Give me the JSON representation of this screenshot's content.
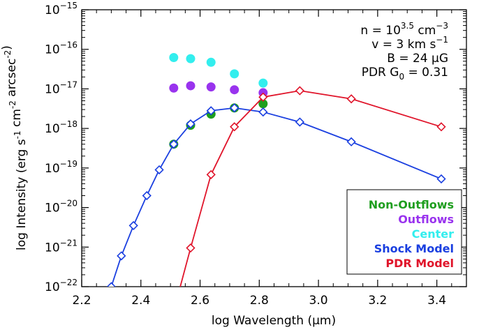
{
  "chart_data": {
    "type": "scatter",
    "xlabel": "log Wavelength (μm)",
    "ylabel": "log Intensity (erg s⁻¹ cm⁻² arcsec⁻²)",
    "xlim": [
      2.2,
      3.5
    ],
    "ylim_log10": [
      -22,
      -15
    ],
    "y_scale": "log",
    "x_ticks": [
      {
        "value": 2.2,
        "label": "2.2"
      },
      {
        "value": 2.4,
        "label": "2.4"
      },
      {
        "value": 2.6,
        "label": "2.6"
      },
      {
        "value": 2.8,
        "label": "2.8"
      },
      {
        "value": 3.0,
        "label": "3.0"
      },
      {
        "value": 3.2,
        "label": "3.2"
      },
      {
        "value": 3.4,
        "label": "3.4"
      }
    ],
    "y_ticks": [
      {
        "exp": -22,
        "base": "10",
        "sup": "−22"
      },
      {
        "exp": -21,
        "base": "10",
        "sup": "−21"
      },
      {
        "exp": -20,
        "base": "10",
        "sup": "−20"
      },
      {
        "exp": -19,
        "base": "10",
        "sup": "−19"
      },
      {
        "exp": -18,
        "base": "10",
        "sup": "−18"
      },
      {
        "exp": -17,
        "base": "10",
        "sup": "−17"
      },
      {
        "exp": -16,
        "base": "10",
        "sup": "−16"
      },
      {
        "exp": -15,
        "base": "10",
        "sup": "−15"
      }
    ],
    "annotations": [
      {
        "lines": [
          {
            "text": "n = 10",
            "sup": "3.5",
            "after": " cm",
            "sup2": "−3"
          },
          {
            "text": "v = 3 km s",
            "sup": "−1",
            "after": "",
            "sup2": ""
          },
          {
            "text": "B = 24 μG",
            "sup": "",
            "after": "",
            "sup2": ""
          },
          {
            "text": "PDR G",
            "sub": "0",
            "after": " = 0.31"
          }
        ]
      }
    ],
    "legend_position": "bottom-right",
    "series": [
      {
        "name": "Non-Outflows",
        "color": "#1e9e1e",
        "marker": "circle",
        "line": false,
        "points": [
          [
            2.511,
            4e-19
          ],
          [
            2.568,
            1.2e-18
          ],
          [
            2.637,
            2.3e-18
          ],
          [
            2.716,
            3.3e-18
          ],
          [
            2.813,
            4.2e-18
          ]
        ]
      },
      {
        "name": "Outflows",
        "color": "#9933ee",
        "marker": "circle",
        "line": false,
        "points": [
          [
            2.511,
            1.05e-17
          ],
          [
            2.568,
            1.2e-17
          ],
          [
            2.637,
            1.12e-17
          ],
          [
            2.716,
            9.5e-18
          ],
          [
            2.813,
            8e-18
          ]
        ]
      },
      {
        "name": "Center",
        "color": "#33eeee",
        "marker": "circle",
        "line": false,
        "points": [
          [
            2.511,
            6.2e-17
          ],
          [
            2.568,
            5.8e-17
          ],
          [
            2.637,
            4.7e-17
          ],
          [
            2.716,
            2.4e-17
          ],
          [
            2.813,
            1.4e-17
          ]
        ]
      },
      {
        "name": "Shock Model",
        "color": "#1a3fe0",
        "marker": "diamond",
        "line": true,
        "points": [
          [
            2.3,
            1e-22
          ],
          [
            2.334,
            6e-22
          ],
          [
            2.375,
            3.5e-21
          ],
          [
            2.42,
            2e-20
          ],
          [
            2.462,
            9e-20
          ],
          [
            2.511,
            4e-19
          ],
          [
            2.568,
            1.3e-18
          ],
          [
            2.637,
            2.8e-18
          ],
          [
            2.716,
            3.3e-18
          ],
          [
            2.813,
            2.6e-18
          ],
          [
            2.937,
            1.45e-18
          ],
          [
            3.111,
            4.6e-19
          ],
          [
            3.415,
            5.3e-20
          ]
        ]
      },
      {
        "name": "PDR Model",
        "color": "#e0142a",
        "marker": "diamond",
        "line": true,
        "points": [
          [
            2.508,
            2e-23
          ],
          [
            2.568,
            9.5e-22
          ],
          [
            2.637,
            6.8e-20
          ],
          [
            2.716,
            1.1e-18
          ],
          [
            2.813,
            6.2e-18
          ],
          [
            2.937,
            9e-18
          ],
          [
            3.111,
            5.6e-18
          ],
          [
            3.415,
            1.1e-18
          ]
        ]
      }
    ]
  }
}
